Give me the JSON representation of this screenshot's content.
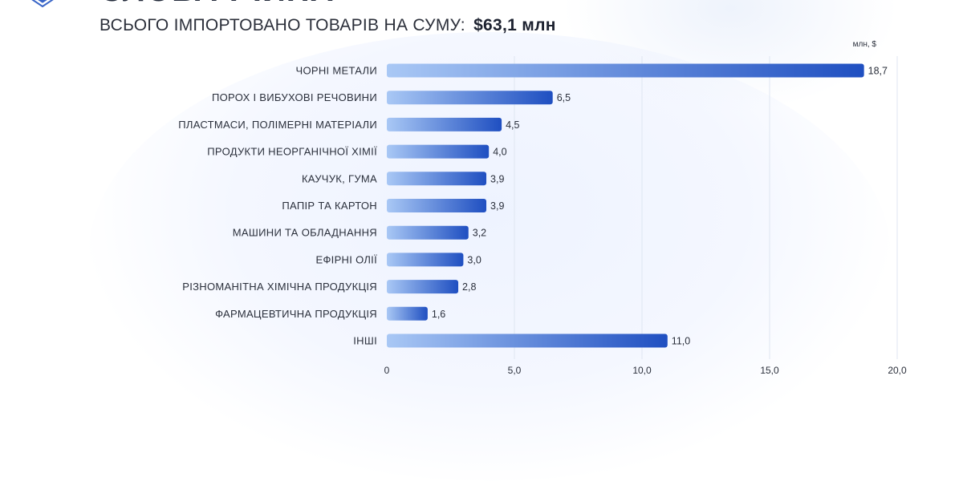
{
  "header": {
    "cut_title": "СЛОВАЧЧИНА",
    "subtitle_label": "ВСЬОГО ІМПОРТОВАНО ТОВАРІВ НА СУМУ:",
    "subtitle_value": "$63,1 млн"
  },
  "colors": {
    "bar_start": "#a9c8f5",
    "bar_end": "#1f4fc1",
    "text": "#2a2f3b",
    "grid": "#dfe6f2"
  },
  "chart_data": {
    "type": "bar",
    "orientation": "horizontal",
    "unit_label": "млн, $",
    "categories": [
      "ЧОРНІ МЕТАЛИ",
      "ПОРОХ І ВИБУХОВІ РЕЧОВИНИ",
      "ПЛАСТМАСИ, ПОЛІМЕРНІ МАТЕРІАЛИ",
      "ПРОДУКТИ НЕОРГАНІЧНОЇ ХІМІЇ",
      "КАУЧУК, ГУМА",
      "ПАПІР ТА КАРТОН",
      "МАШИНИ ТА ОБЛАДНАННЯ",
      "ЕФІРНІ ОЛІЇ",
      "РІЗНОМАНІТНА ХІМІЧНА ПРОДУКЦІЯ",
      "ФАРМАЦЕВТИЧНА ПРОДУКЦІЯ",
      "ІНШІ"
    ],
    "values": [
      18.7,
      6.5,
      4.5,
      4.0,
      3.9,
      3.9,
      3.2,
      3.0,
      2.8,
      1.6,
      11.0
    ],
    "value_labels": [
      "18,7",
      "6,5",
      "4,5",
      "4,0",
      "3,9",
      "3,9",
      "3,2",
      "3,0",
      "2,8",
      "1,6",
      "11,0"
    ],
    "xlim": [
      0,
      20
    ],
    "x_ticks": [
      0,
      5,
      10,
      15,
      20
    ],
    "x_tick_labels": [
      "0",
      "5,0",
      "10,0",
      "15,0",
      "20,0"
    ],
    "grid": true
  }
}
